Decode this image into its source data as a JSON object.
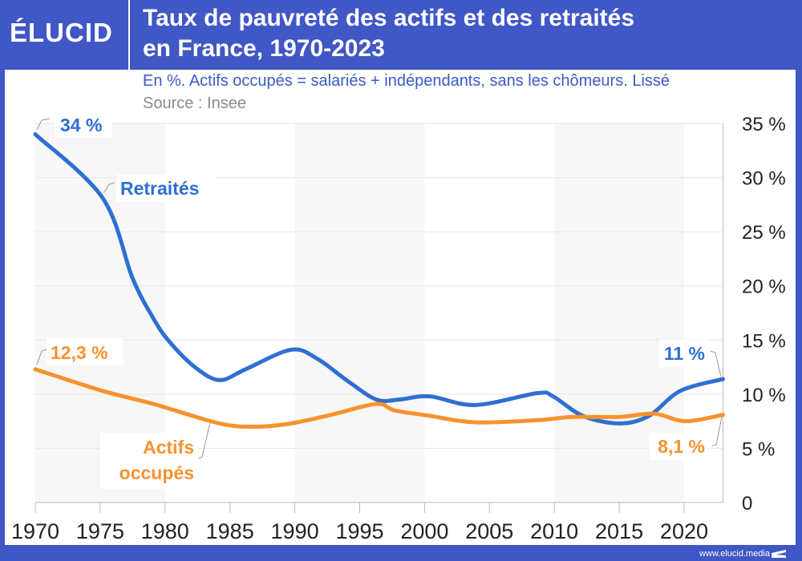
{
  "header": {
    "logo": "ÉLUCID",
    "title_line1": "Taux de pauvreté des actifs et des retraités",
    "title_line2": "en France, 1970-2023",
    "subtitle": "En %. Actifs occupés = salariés + indépendants, sans les chômeurs. Lissé",
    "source": "Source : Insee"
  },
  "footer": {
    "url": "www.elucid.media"
  },
  "colors": {
    "frame": "#4057c6",
    "retraites": "#2f6fd3",
    "actifs": "#f7922e",
    "band": "#f7f7f7"
  },
  "chart_data": {
    "type": "line",
    "title": "Taux de pauvreté des actifs et des retraités en France, 1970-2023",
    "xlim": [
      1970,
      2023
    ],
    "ylim": [
      0,
      35
    ],
    "x_ticks": [
      "1970",
      "1975",
      "1980",
      "1985",
      "1990",
      "1995",
      "2000",
      "2005",
      "2010",
      "2015",
      "2020"
    ],
    "y_ticks": [
      "0",
      "5 %",
      "10 %",
      "15 %",
      "20 %",
      "25 %",
      "30 %",
      "35 %"
    ],
    "y_axis_side": "right",
    "grid": true,
    "shaded_bands": [
      [
        1970,
        1980
      ],
      [
        1990,
        2000
      ],
      [
        2010,
        2020
      ]
    ],
    "series": [
      {
        "name": "Retraités",
        "color": "#2f6fd3",
        "x": [
          1970,
          1975.2,
          1977.5,
          1979.1,
          1980.3,
          1982.3,
          1984.2,
          1986.2,
          1989.7,
          1991.7,
          1994.1,
          1996.3,
          1998,
          2000.4,
          2003.9,
          2008.7,
          2009.9,
          2012.2,
          2015,
          2017.3,
          2019.7,
          2023
        ],
        "y": [
          34,
          28.1,
          20.7,
          17,
          14.9,
          12.5,
          11.3,
          12.3,
          14.1,
          13.3,
          11.2,
          9.5,
          9.5,
          9.8,
          9,
          10.1,
          9.8,
          8,
          7.3,
          8,
          10.3,
          11.4
        ]
      },
      {
        "name": "Actifs occupés",
        "color": "#f7922e",
        "x": [
          1970,
          1975.2,
          1979.1,
          1984.2,
          1987,
          1989.7,
          1992.8,
          1996.3,
          1997.7,
          2000.4,
          2003.9,
          2008.7,
          2011.4,
          2015,
          2017.7,
          2020.1,
          2023
        ],
        "y": [
          12.3,
          10.3,
          9.1,
          7.3,
          7,
          7.3,
          8.1,
          9.1,
          8.5,
          8,
          7.4,
          7.6,
          7.9,
          7.9,
          8.2,
          7.5,
          8.1
        ]
      }
    ],
    "annotations": {
      "retraites_start": "34 %",
      "retraites_name": "Retraités",
      "retraites_end": "11 %",
      "actifs_start": "12,3 %",
      "actifs_name_line1": "Actifs",
      "actifs_name_line2": "occupés",
      "actifs_end": "8,1 %"
    }
  }
}
